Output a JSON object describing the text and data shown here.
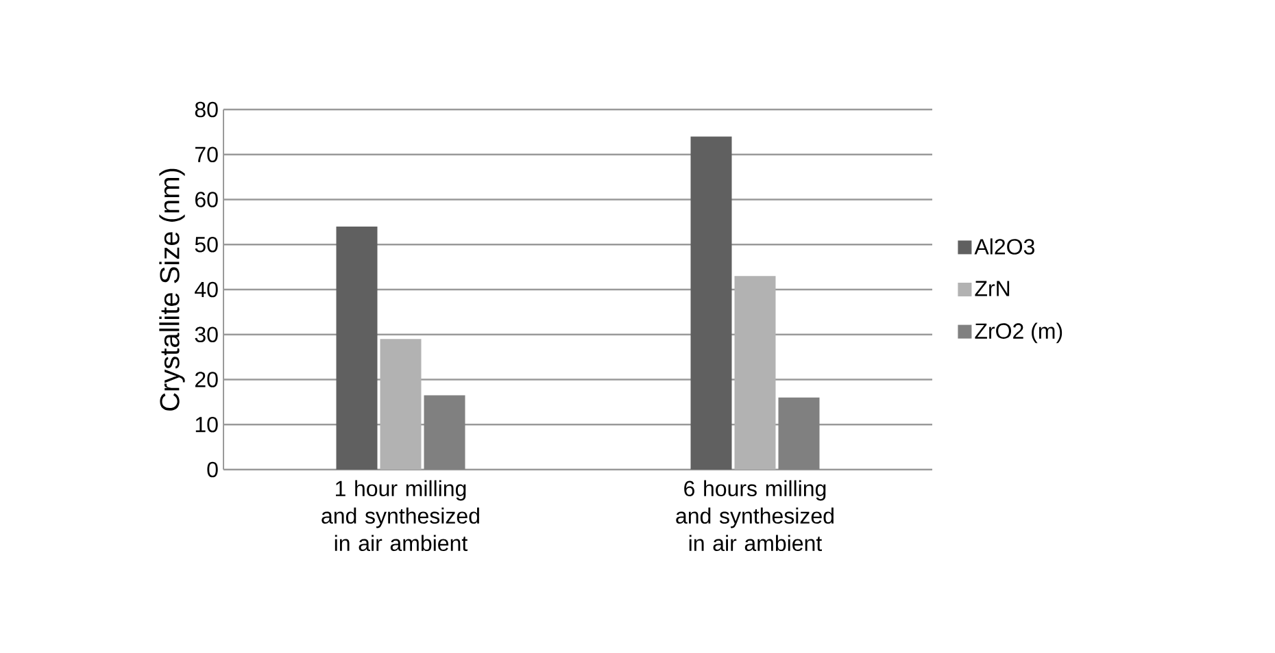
{
  "chart_data": {
    "type": "bar",
    "ylabel": "Crystallite Size (nm)",
    "categories": [
      "1 hour milling and synthesized in air ambient",
      "6 hours milling and synthesized in air ambient"
    ],
    "series": [
      {
        "name": "Al2O3",
        "color": "#606060",
        "values": [
          54,
          74
        ]
      },
      {
        "name": "ZrN",
        "color": "#b2b2b2",
        "values": [
          29,
          43
        ]
      },
      {
        "name": "ZrO2 (m)",
        "color": "#808080",
        "values": [
          16.5,
          16
        ]
      }
    ],
    "ylim": [
      0,
      80
    ],
    "yticks": [
      0,
      10,
      20,
      30,
      40,
      50,
      60,
      70,
      80
    ],
    "grid": "y",
    "legend": "right"
  }
}
